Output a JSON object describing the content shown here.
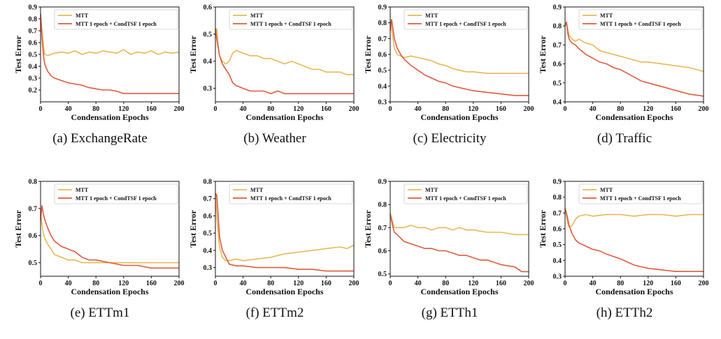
{
  "colors": {
    "mtt": "#e6b955",
    "condtsf": "#e05a3f",
    "axis": "#111111"
  },
  "chart_data": [
    {
      "type": "line",
      "caption": "(a) ExchangeRate",
      "xlabel": "Condensation Epochs",
      "ylabel": "Test Error",
      "xlim": [
        0,
        200
      ],
      "ylim": [
        0.1,
        0.9
      ],
      "xticks": [
        0,
        40,
        80,
        120,
        160,
        200
      ],
      "yticks": [
        0.2,
        0.3,
        0.4,
        0.5,
        0.6,
        0.7,
        0.8,
        0.9
      ],
      "ytick_labels": [
        "0.2",
        "0.3",
        "0.4",
        "0.5",
        "0.6",
        "0.7",
        "0.8",
        "0.9"
      ],
      "legend_position": "top",
      "series": [
        {
          "name": "MTT",
          "color": "#e6b955",
          "x": [
            0,
            2,
            4,
            6,
            10,
            20,
            30,
            40,
            50,
            60,
            70,
            80,
            90,
            100,
            110,
            120,
            130,
            140,
            150,
            160,
            170,
            180,
            190,
            200
          ],
          "y": [
            0.84,
            0.7,
            0.58,
            0.5,
            0.49,
            0.51,
            0.52,
            0.51,
            0.53,
            0.5,
            0.52,
            0.51,
            0.53,
            0.52,
            0.51,
            0.54,
            0.5,
            0.52,
            0.51,
            0.53,
            0.5,
            0.52,
            0.51,
            0.52
          ]
        },
        {
          "name": "MTT 1 epoch + CondTSF 1 epoch",
          "color": "#e05a3f",
          "x": [
            0,
            2,
            4,
            6,
            10,
            15,
            20,
            30,
            40,
            50,
            60,
            70,
            80,
            90,
            100,
            110,
            120,
            140,
            160,
            180,
            200
          ],
          "y": [
            0.84,
            0.65,
            0.5,
            0.42,
            0.36,
            0.32,
            0.3,
            0.28,
            0.26,
            0.25,
            0.24,
            0.22,
            0.21,
            0.2,
            0.2,
            0.19,
            0.17,
            0.17,
            0.17,
            0.17,
            0.17
          ]
        }
      ]
    },
    {
      "type": "line",
      "caption": "(b) Weather",
      "xlabel": "Condensation Epochs",
      "ylabel": "Test Error",
      "xlim": [
        0,
        200
      ],
      "ylim": [
        0.25,
        0.6
      ],
      "xticks": [
        0,
        40,
        80,
        120,
        160,
        200
      ],
      "yticks": [
        0.3,
        0.4,
        0.5,
        0.6
      ],
      "ytick_labels": [
        "0.3",
        "0.4",
        "0.5",
        "0.6"
      ],
      "legend_position": "top",
      "series": [
        {
          "name": "MTT",
          "color": "#e6b955",
          "x": [
            0,
            2,
            4,
            6,
            10,
            15,
            20,
            25,
            30,
            40,
            50,
            60,
            70,
            80,
            90,
            100,
            110,
            120,
            130,
            140,
            150,
            160,
            170,
            180,
            190,
            200
          ],
          "y": [
            0.5,
            0.52,
            0.46,
            0.42,
            0.4,
            0.39,
            0.4,
            0.43,
            0.44,
            0.43,
            0.42,
            0.42,
            0.41,
            0.41,
            0.4,
            0.39,
            0.4,
            0.39,
            0.38,
            0.37,
            0.37,
            0.36,
            0.36,
            0.36,
            0.35,
            0.35
          ]
        },
        {
          "name": "MTT 1 epoch + CondTSF 1 epoch",
          "color": "#e05a3f",
          "x": [
            0,
            2,
            4,
            6,
            10,
            15,
            20,
            25,
            30,
            40,
            50,
            60,
            70,
            80,
            90,
            100,
            120,
            140,
            160,
            180,
            200
          ],
          "y": [
            0.52,
            0.48,
            0.45,
            0.42,
            0.39,
            0.37,
            0.35,
            0.32,
            0.31,
            0.3,
            0.29,
            0.29,
            0.29,
            0.28,
            0.29,
            0.28,
            0.28,
            0.28,
            0.28,
            0.28,
            0.28
          ]
        }
      ]
    },
    {
      "type": "line",
      "caption": "(c) Electricity",
      "xlabel": "Condensation Epochs",
      "ylabel": "Test Error",
      "xlim": [
        0,
        200
      ],
      "ylim": [
        0.3,
        0.9
      ],
      "xticks": [
        0,
        40,
        80,
        120,
        160,
        200
      ],
      "yticks": [
        0.3,
        0.4,
        0.5,
        0.6,
        0.7,
        0.8,
        0.9
      ],
      "ytick_labels": [
        "0.3",
        "0.4",
        "0.5",
        "0.6",
        "0.7",
        "0.8",
        "0.9"
      ],
      "legend_position": "top",
      "series": [
        {
          "name": "MTT",
          "color": "#e6b955",
          "x": [
            0,
            2,
            4,
            6,
            10,
            15,
            20,
            30,
            40,
            50,
            60,
            70,
            80,
            90,
            100,
            110,
            120,
            140,
            160,
            180,
            200
          ],
          "y": [
            0.82,
            0.76,
            0.7,
            0.64,
            0.6,
            0.59,
            0.58,
            0.59,
            0.58,
            0.57,
            0.56,
            0.54,
            0.53,
            0.51,
            0.5,
            0.49,
            0.49,
            0.48,
            0.48,
            0.48,
            0.48
          ]
        },
        {
          "name": "MTT 1 epoch + CondTSF 1 epoch",
          "color": "#e05a3f",
          "x": [
            0,
            2,
            4,
            6,
            10,
            15,
            20,
            30,
            40,
            50,
            60,
            70,
            80,
            90,
            100,
            110,
            120,
            140,
            160,
            180,
            200
          ],
          "y": [
            0.75,
            0.82,
            0.76,
            0.7,
            0.64,
            0.6,
            0.57,
            0.53,
            0.5,
            0.47,
            0.45,
            0.43,
            0.42,
            0.4,
            0.39,
            0.38,
            0.37,
            0.36,
            0.35,
            0.34,
            0.34
          ]
        }
      ]
    },
    {
      "type": "line",
      "caption": "(d) Traffic",
      "xlabel": "Condensation Epochs",
      "ylabel": "Test Error",
      "xlim": [
        0,
        200
      ],
      "ylim": [
        0.4,
        0.9
      ],
      "xticks": [
        0,
        40,
        80,
        120,
        160,
        200
      ],
      "yticks": [
        0.4,
        0.5,
        0.6,
        0.7,
        0.8,
        0.9
      ],
      "ytick_labels": [
        "0.4",
        "0.5",
        "0.6",
        "0.7",
        "0.8",
        "0.9"
      ],
      "legend_position": "top",
      "series": [
        {
          "name": "MTT",
          "color": "#e6b955",
          "x": [
            0,
            2,
            4,
            6,
            10,
            15,
            20,
            30,
            40,
            50,
            60,
            70,
            80,
            90,
            100,
            110,
            120,
            140,
            160,
            180,
            200
          ],
          "y": [
            0.8,
            0.82,
            0.78,
            0.75,
            0.73,
            0.72,
            0.73,
            0.71,
            0.7,
            0.67,
            0.66,
            0.65,
            0.64,
            0.63,
            0.62,
            0.61,
            0.61,
            0.6,
            0.59,
            0.58,
            0.56
          ]
        },
        {
          "name": "MTT 1 epoch + CondTSF 1 epoch",
          "color": "#e05a3f",
          "x": [
            0,
            2,
            4,
            6,
            10,
            15,
            20,
            30,
            40,
            50,
            60,
            70,
            80,
            90,
            100,
            110,
            120,
            140,
            160,
            180,
            200
          ],
          "y": [
            0.8,
            0.82,
            0.76,
            0.73,
            0.71,
            0.7,
            0.68,
            0.65,
            0.63,
            0.61,
            0.6,
            0.58,
            0.57,
            0.55,
            0.53,
            0.51,
            0.5,
            0.48,
            0.46,
            0.44,
            0.43
          ]
        }
      ]
    },
    {
      "type": "line",
      "caption": "(e) ETTm1",
      "xlabel": "Condensation Epochs",
      "ylabel": "Test Error",
      "xlim": [
        0,
        200
      ],
      "ylim": [
        0.45,
        0.8
      ],
      "xticks": [
        0,
        40,
        80,
        120,
        160,
        200
      ],
      "yticks": [
        0.5,
        0.6,
        0.7,
        0.8
      ],
      "ytick_labels": [
        "0.5",
        "0.6",
        "0.7",
        "0.8"
      ],
      "legend_position": "top",
      "series": [
        {
          "name": "MTT",
          "color": "#e6b955",
          "x": [
            0,
            2,
            4,
            6,
            10,
            15,
            20,
            30,
            40,
            50,
            60,
            70,
            80,
            100,
            120,
            140,
            160,
            180,
            200
          ],
          "y": [
            0.68,
            0.64,
            0.61,
            0.59,
            0.57,
            0.55,
            0.53,
            0.52,
            0.51,
            0.51,
            0.5,
            0.5,
            0.5,
            0.5,
            0.5,
            0.5,
            0.5,
            0.5,
            0.5
          ]
        },
        {
          "name": "MTT 1 epoch + CondTSF 1 epoch",
          "color": "#e05a3f",
          "x": [
            0,
            2,
            4,
            6,
            10,
            15,
            20,
            30,
            40,
            50,
            60,
            70,
            80,
            100,
            120,
            140,
            160,
            180,
            200
          ],
          "y": [
            0.66,
            0.71,
            0.68,
            0.66,
            0.63,
            0.6,
            0.58,
            0.56,
            0.55,
            0.54,
            0.52,
            0.51,
            0.51,
            0.5,
            0.49,
            0.49,
            0.48,
            0.48,
            0.48
          ]
        }
      ]
    },
    {
      "type": "line",
      "caption": "(f) ETTm2",
      "xlabel": "Condensation Epochs",
      "ylabel": "Test Error",
      "xlim": [
        0,
        200
      ],
      "ylim": [
        0.25,
        0.8
      ],
      "xticks": [
        0,
        40,
        80,
        120,
        160,
        200
      ],
      "yticks": [
        0.3,
        0.4,
        0.5,
        0.6,
        0.7,
        0.8
      ],
      "ytick_labels": [
        "0.3",
        "0.4",
        "0.5",
        "0.6",
        "0.7",
        "0.8"
      ],
      "legend_position": "top",
      "series": [
        {
          "name": "MTT",
          "color": "#e6b955",
          "x": [
            0,
            2,
            4,
            6,
            10,
            15,
            20,
            30,
            40,
            60,
            80,
            100,
            120,
            140,
            160,
            180,
            190,
            200
          ],
          "y": [
            0.73,
            0.6,
            0.5,
            0.42,
            0.36,
            0.34,
            0.34,
            0.35,
            0.34,
            0.35,
            0.36,
            0.38,
            0.39,
            0.4,
            0.41,
            0.42,
            0.41,
            0.43
          ]
        },
        {
          "name": "MTT 1 epoch + CondTSF 1 epoch",
          "color": "#e05a3f",
          "x": [
            0,
            2,
            4,
            6,
            10,
            15,
            20,
            30,
            40,
            60,
            80,
            100,
            120,
            140,
            160,
            180,
            200
          ],
          "y": [
            0.73,
            0.72,
            0.6,
            0.48,
            0.4,
            0.36,
            0.32,
            0.31,
            0.31,
            0.3,
            0.3,
            0.3,
            0.29,
            0.29,
            0.28,
            0.28,
            0.28
          ]
        }
      ]
    },
    {
      "type": "line",
      "caption": "(g) ETTh1",
      "xlabel": "Condensation Epochs",
      "ylabel": "Test Error",
      "xlim": [
        0,
        200
      ],
      "ylim": [
        0.49,
        0.9
      ],
      "xticks": [
        0,
        40,
        80,
        120,
        160,
        200
      ],
      "yticks": [
        0.5,
        0.6,
        0.7,
        0.8,
        0.9
      ],
      "ytick_labels": [
        "0.5",
        "0.6",
        "0.7",
        "0.8",
        "0.9"
      ],
      "legend_position": "top",
      "series": [
        {
          "name": "MTT",
          "color": "#e6b955",
          "x": [
            0,
            2,
            4,
            6,
            10,
            20,
            30,
            40,
            50,
            60,
            70,
            80,
            90,
            100,
            110,
            120,
            140,
            160,
            180,
            200
          ],
          "y": [
            0.76,
            0.74,
            0.72,
            0.7,
            0.7,
            0.7,
            0.71,
            0.7,
            0.7,
            0.69,
            0.7,
            0.7,
            0.69,
            0.7,
            0.69,
            0.69,
            0.68,
            0.68,
            0.67,
            0.67
          ]
        },
        {
          "name": "MTT 1 epoch + CondTSF 1 epoch",
          "color": "#e05a3f",
          "x": [
            0,
            2,
            4,
            6,
            10,
            20,
            30,
            40,
            50,
            60,
            70,
            80,
            90,
            100,
            110,
            120,
            130,
            140,
            160,
            180,
            190,
            200
          ],
          "y": [
            0.76,
            0.73,
            0.7,
            0.68,
            0.67,
            0.64,
            0.63,
            0.62,
            0.61,
            0.61,
            0.6,
            0.6,
            0.59,
            0.58,
            0.58,
            0.57,
            0.56,
            0.56,
            0.54,
            0.53,
            0.51,
            0.51
          ]
        }
      ]
    },
    {
      "type": "line",
      "caption": "(h) ETTh2",
      "xlabel": "Condensation Epochs",
      "ylabel": "Test Error",
      "xlim": [
        0,
        200
      ],
      "ylim": [
        0.3,
        0.9
      ],
      "xticks": [
        0,
        40,
        80,
        120,
        160,
        200
      ],
      "yticks": [
        0.3,
        0.4,
        0.5,
        0.6,
        0.7,
        0.8,
        0.9
      ],
      "ytick_labels": [
        "0.3",
        "0.4",
        "0.5",
        "0.6",
        "0.7",
        "0.8",
        "0.9"
      ],
      "legend_position": "top",
      "series": [
        {
          "name": "MTT",
          "color": "#e6b955",
          "x": [
            0,
            2,
            4,
            6,
            10,
            15,
            20,
            30,
            40,
            60,
            80,
            100,
            120,
            140,
            160,
            180,
            200
          ],
          "y": [
            0.73,
            0.68,
            0.63,
            0.61,
            0.62,
            0.66,
            0.68,
            0.69,
            0.68,
            0.69,
            0.69,
            0.68,
            0.69,
            0.69,
            0.68,
            0.69,
            0.69
          ]
        },
        {
          "name": "MTT 1 epoch + CondTSF 1 epoch",
          "color": "#e05a3f",
          "x": [
            0,
            2,
            4,
            6,
            10,
            15,
            20,
            30,
            40,
            50,
            60,
            80,
            100,
            120,
            140,
            160,
            180,
            200
          ],
          "y": [
            0.73,
            0.7,
            0.66,
            0.62,
            0.57,
            0.53,
            0.51,
            0.49,
            0.47,
            0.46,
            0.44,
            0.41,
            0.37,
            0.35,
            0.34,
            0.33,
            0.33,
            0.33
          ]
        }
      ]
    }
  ]
}
